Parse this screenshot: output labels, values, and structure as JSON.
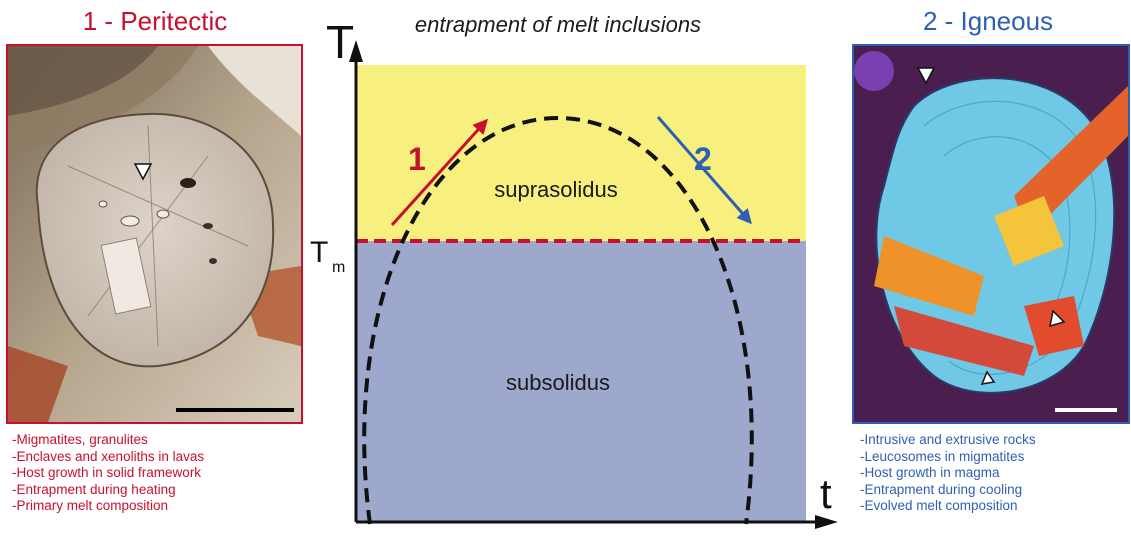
{
  "colors": {
    "peritectic": "#c8102e",
    "igneous": "#2f5fb3",
    "suprasolidus_field": "#f7ef7e",
    "subsolidus_field": "#9da8cc",
    "solidus_line": "#c8102e"
  },
  "left": {
    "title": "1 - Peritectic",
    "bullets": [
      "-Migmatites, granulites",
      "-Enclaves and xenoliths in lavas",
      "-Host growth in solid framework",
      "-Entrapment during heating",
      "-Primary melt composition"
    ]
  },
  "right": {
    "title": "2 - Igneous",
    "bullets": [
      "-Intrusive and extrusive rocks",
      "-Leucosomes in migmatites",
      "-Host growth in magma",
      "-Entrapment during cooling",
      "-Evolved melt composition"
    ]
  },
  "diagram": {
    "title": "entrapment of melt inclusions",
    "y_axis_label": "T",
    "x_axis_label": "t",
    "solidus_label_main": "T",
    "solidus_label_sub": "m",
    "suprasolidus_label": "suprasolidus",
    "subsolidus_label": "subsolidus",
    "arrow_1_label": "1",
    "arrow_2_label": "2"
  }
}
